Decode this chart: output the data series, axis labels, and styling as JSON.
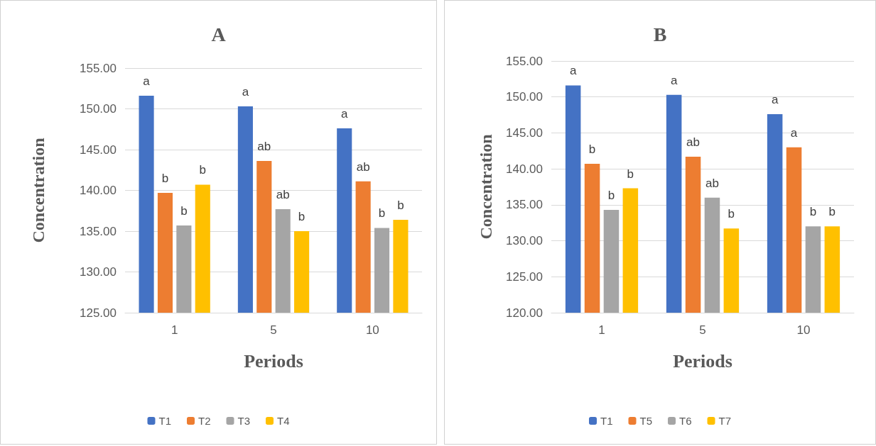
{
  "chart_data": [
    {
      "type": "bar",
      "title": "A",
      "xlabel": "Periods",
      "ylabel": "Concentration",
      "categories": [
        "1",
        "5",
        "10"
      ],
      "ylim": [
        125,
        155
      ],
      "yticks": [
        {
          "value": 125,
          "label": "125.00"
        },
        {
          "value": 130,
          "label": "130.00"
        },
        {
          "value": 135,
          "label": "135.00"
        },
        {
          "value": 140,
          "label": "140.00"
        },
        {
          "value": 145,
          "label": "145.00"
        },
        {
          "value": 150,
          "label": "150.00"
        },
        {
          "value": 155,
          "label": "155.00"
        }
      ],
      "grid": "y",
      "legend": "bottom",
      "series": [
        {
          "name": "T1",
          "color": "#4472c4",
          "values": [
            151.6,
            150.3,
            147.6
          ],
          "value_labels": [
            "a",
            "a",
            "a"
          ]
        },
        {
          "name": "T2",
          "color": "#ed7d31",
          "values": [
            139.7,
            143.6,
            141.1
          ],
          "value_labels": [
            "b",
            "ab",
            "ab"
          ]
        },
        {
          "name": "T3",
          "color": "#a5a5a5",
          "values": [
            135.7,
            137.7,
            135.4
          ],
          "value_labels": [
            "b",
            "ab",
            "b"
          ]
        },
        {
          "name": "T4",
          "color": "#ffc000",
          "values": [
            140.7,
            135.0,
            136.4
          ],
          "value_labels": [
            "b",
            "b",
            "b"
          ]
        }
      ]
    },
    {
      "type": "bar",
      "title": "B",
      "xlabel": "Periods",
      "ylabel": "Concentration",
      "categories": [
        "1",
        "5",
        "10"
      ],
      "ylim": [
        120,
        155
      ],
      "yticks": [
        {
          "value": 120,
          "label": "120.00"
        },
        {
          "value": 125,
          "label": "125.00"
        },
        {
          "value": 130,
          "label": "130.00"
        },
        {
          "value": 135,
          "label": "135.00"
        },
        {
          "value": 140,
          "label": "140.00"
        },
        {
          "value": 145,
          "label": "145.00"
        },
        {
          "value": 150,
          "label": "150.00"
        },
        {
          "value": 155,
          "label": "155.00"
        }
      ],
      "grid": "y",
      "legend": "bottom",
      "series": [
        {
          "name": "T1",
          "color": "#4472c4",
          "values": [
            151.6,
            150.3,
            147.6
          ],
          "value_labels": [
            "a",
            "a",
            "a"
          ]
        },
        {
          "name": "T5",
          "color": "#ed7d31",
          "values": [
            140.7,
            141.7,
            143.0
          ],
          "value_labels": [
            "b",
            "ab",
            "a"
          ]
        },
        {
          "name": "T6",
          "color": "#a5a5a5",
          "values": [
            134.3,
            136.0,
            132.0
          ],
          "value_labels": [
            "b",
            "ab",
            "b"
          ]
        },
        {
          "name": "T7",
          "color": "#ffc000",
          "values": [
            137.3,
            131.7,
            132.0
          ],
          "value_labels": [
            "b",
            "b",
            "b"
          ]
        }
      ]
    }
  ]
}
